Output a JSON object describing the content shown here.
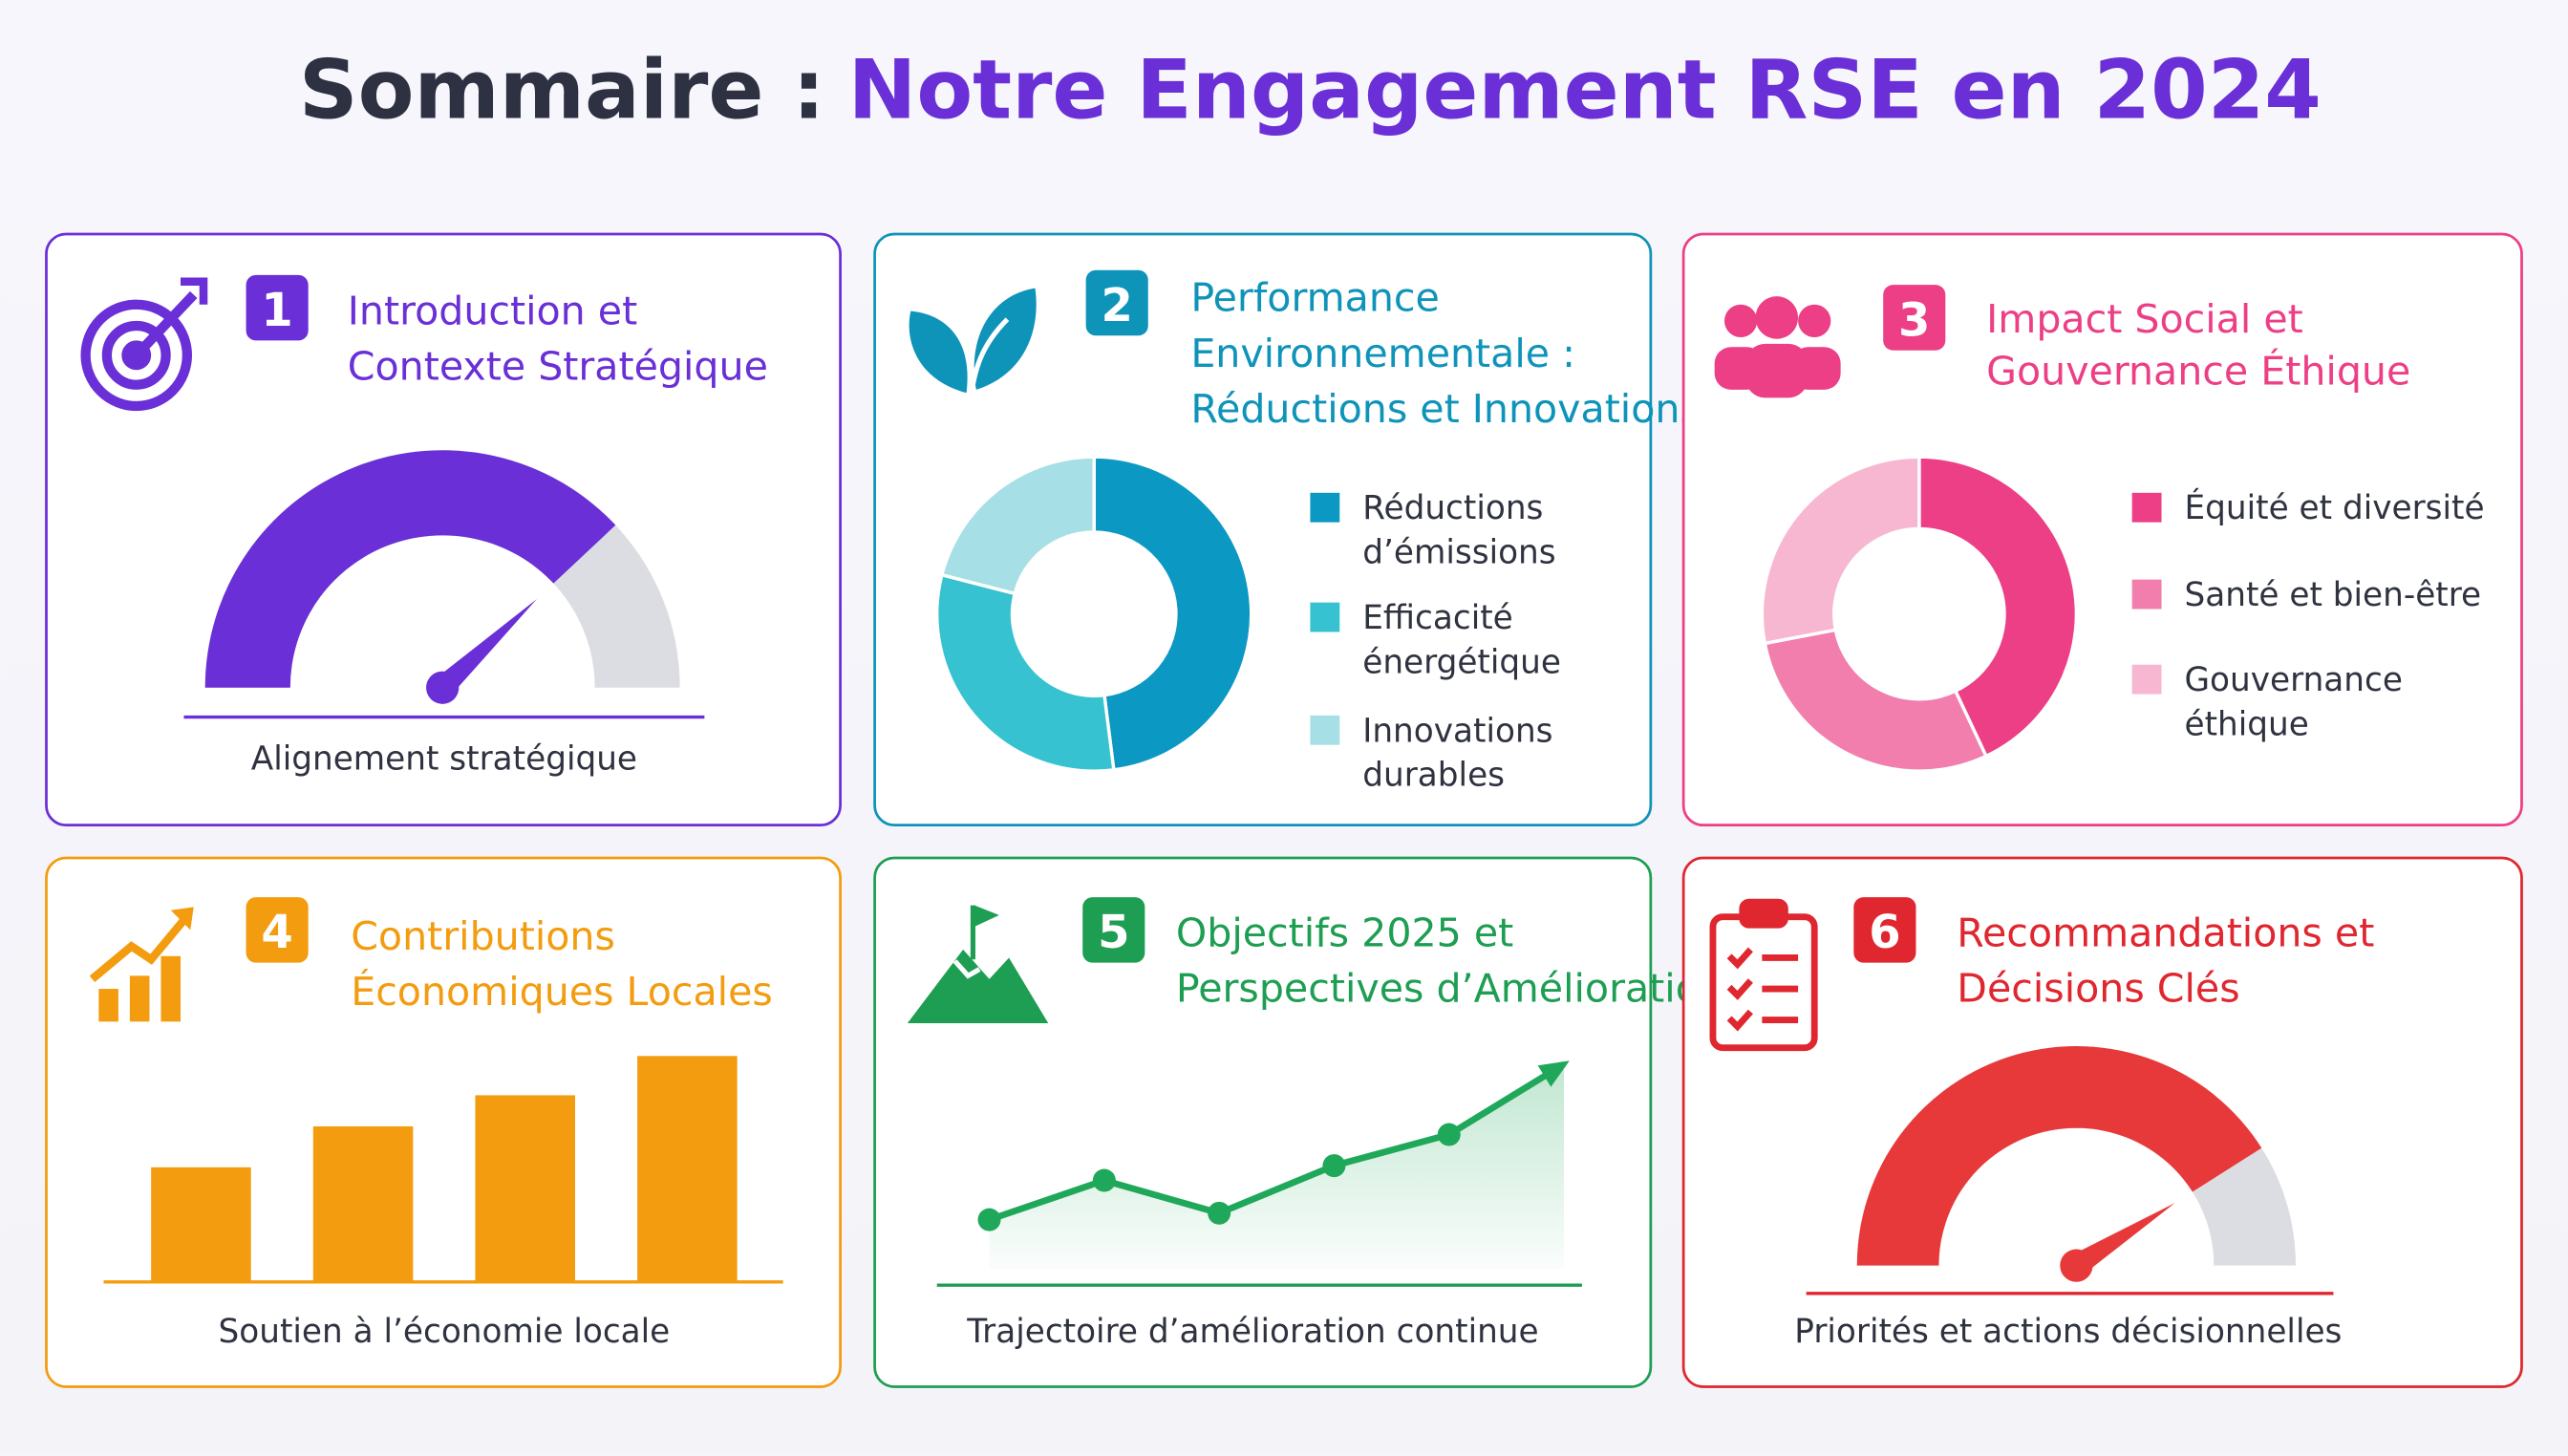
{
  "header": {
    "title_prefix": "Sommaire :",
    "title_highlight": "Notre Engagement RSE en 2024"
  },
  "sections": [
    {
      "number": "1",
      "title_lines": [
        "Introduction et",
        "Contexte Stratégique"
      ],
      "color": "#6a2fd6",
      "caption": "Alignement stratégique",
      "chart_data": {
        "type": "gauge",
        "value": 76,
        "range": [
          0,
          100
        ],
        "color": "#6a2fd6",
        "track_color": "#dcdde3"
      }
    },
    {
      "number": "2",
      "title_lines": [
        "Performance",
        "Environnementale :",
        "Réductions et Innovations"
      ],
      "color": "#0e93b9",
      "chart_data": {
        "type": "donut",
        "categories": [
          [
            "Réductions",
            "d’émissions"
          ],
          [
            "Efficacité",
            "énergétique"
          ],
          [
            "Innovations",
            "durables"
          ]
        ],
        "values": [
          48,
          31,
          21
        ],
        "colors": [
          "#0b98c3",
          "#36c2d0",
          "#a6e0e6"
        ]
      }
    },
    {
      "number": "3",
      "title_lines": [
        "Impact Social et",
        "Gouvernance Éthique"
      ],
      "color": "#ec3f85",
      "chart_data": {
        "type": "donut",
        "categories": [
          [
            "Équité et diversité"
          ],
          [
            "Santé et bien-être"
          ],
          [
            "Gouvernance",
            "éthique"
          ]
        ],
        "values": [
          43,
          29,
          28
        ],
        "colors": [
          "#ec3f85",
          "#f27eae",
          "#f8b7d0"
        ]
      }
    },
    {
      "number": "4",
      "title_lines": [
        "Contributions",
        "Économiques Locales"
      ],
      "color": "#f39c0f",
      "caption": "Soutien à l’économie locale",
      "chart_data": {
        "type": "bar",
        "values": [
          70,
          95,
          114,
          138
        ],
        "ylim": [
          0,
          150
        ],
        "color": "#f39c0f"
      }
    },
    {
      "number": "5",
      "title_lines": [
        "Objectifs 2025 et",
        "Perspectives d’Amélioration"
      ],
      "color": "#1e9e52",
      "caption": "Trajectoire d’amélioration continue",
      "chart_data": {
        "type": "line",
        "values": [
          40,
          64,
          44,
          73,
          92,
          135
        ],
        "ylim": [
          0,
          150
        ],
        "color": "#1fa85a"
      }
    },
    {
      "number": "6",
      "title_lines": [
        "Recommandations et",
        "Décisions Clés"
      ],
      "color": "#e0262f",
      "caption": "Priorités et actions décisionnelles",
      "chart_data": {
        "type": "gauge",
        "value": 82,
        "range": [
          0,
          100
        ],
        "color": "#e8393a",
        "track_color": "#dcdde3"
      }
    }
  ]
}
